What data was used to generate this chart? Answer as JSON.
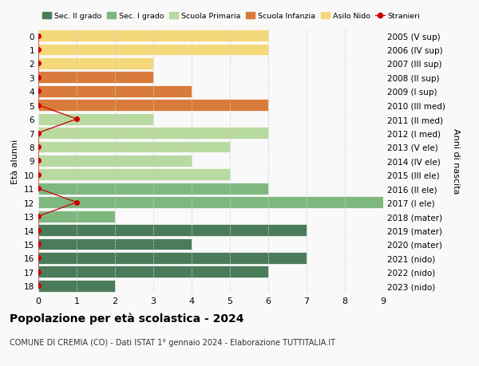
{
  "ages": [
    18,
    17,
    16,
    15,
    14,
    13,
    12,
    11,
    10,
    9,
    8,
    7,
    6,
    5,
    4,
    3,
    2,
    1,
    0
  ],
  "years": [
    "2005 (V sup)",
    "2006 (IV sup)",
    "2007 (III sup)",
    "2008 (II sup)",
    "2009 (I sup)",
    "2010 (III med)",
    "2011 (II med)",
    "2012 (I med)",
    "2013 (V ele)",
    "2014 (IV ele)",
    "2015 (III ele)",
    "2016 (II ele)",
    "2017 (I ele)",
    "2018 (mater)",
    "2019 (mater)",
    "2020 (mater)",
    "2021 (nido)",
    "2022 (nido)",
    "2023 (nido)"
  ],
  "bar_values": [
    2,
    6,
    7,
    4,
    7,
    2,
    9,
    6,
    5,
    4,
    5,
    6,
    3,
    6,
    4,
    3,
    3,
    6,
    6
  ],
  "bar_colors": [
    "#4a7c59",
    "#4a7c59",
    "#4a7c59",
    "#4a7c59",
    "#4a7c59",
    "#7fb87f",
    "#7fb87f",
    "#7fb87f",
    "#b8d9a0",
    "#b8d9a0",
    "#b8d9a0",
    "#b8d9a0",
    "#b8d9a0",
    "#d97b3a",
    "#d97b3a",
    "#d97b3a",
    "#f5d87a",
    "#f5d87a",
    "#f5d87a"
  ],
  "stranieri_values": [
    0,
    0,
    0,
    0,
    0,
    0,
    1,
    0,
    0,
    0,
    0,
    0,
    1,
    0,
    0,
    0,
    0,
    0,
    0
  ],
  "color_sec2": "#4a7c59",
  "color_sec1": "#7fb87f",
  "color_prim": "#b8d9a0",
  "color_infanzia": "#d97b3a",
  "color_nido": "#f5d87a",
  "color_stranieri": "#cc0000",
  "title": "Popolazione per età scolastica - 2024",
  "subtitle": "COMUNE DI CREMIA (CO) - Dati ISTAT 1° gennaio 2024 - Elaborazione TUTTITALIA.IT",
  "ylabel_left": "Età alunni",
  "ylabel_right": "Anni di nascita",
  "xlim": [
    0,
    9
  ],
  "bg_color": "#f9f9f9",
  "grid_color": "#cccccc",
  "legend_labels": [
    "Sec. II grado",
    "Sec. I grado",
    "Scuola Primaria",
    "Scuola Infanzia",
    "Asilo Nido",
    "Stranieri"
  ]
}
